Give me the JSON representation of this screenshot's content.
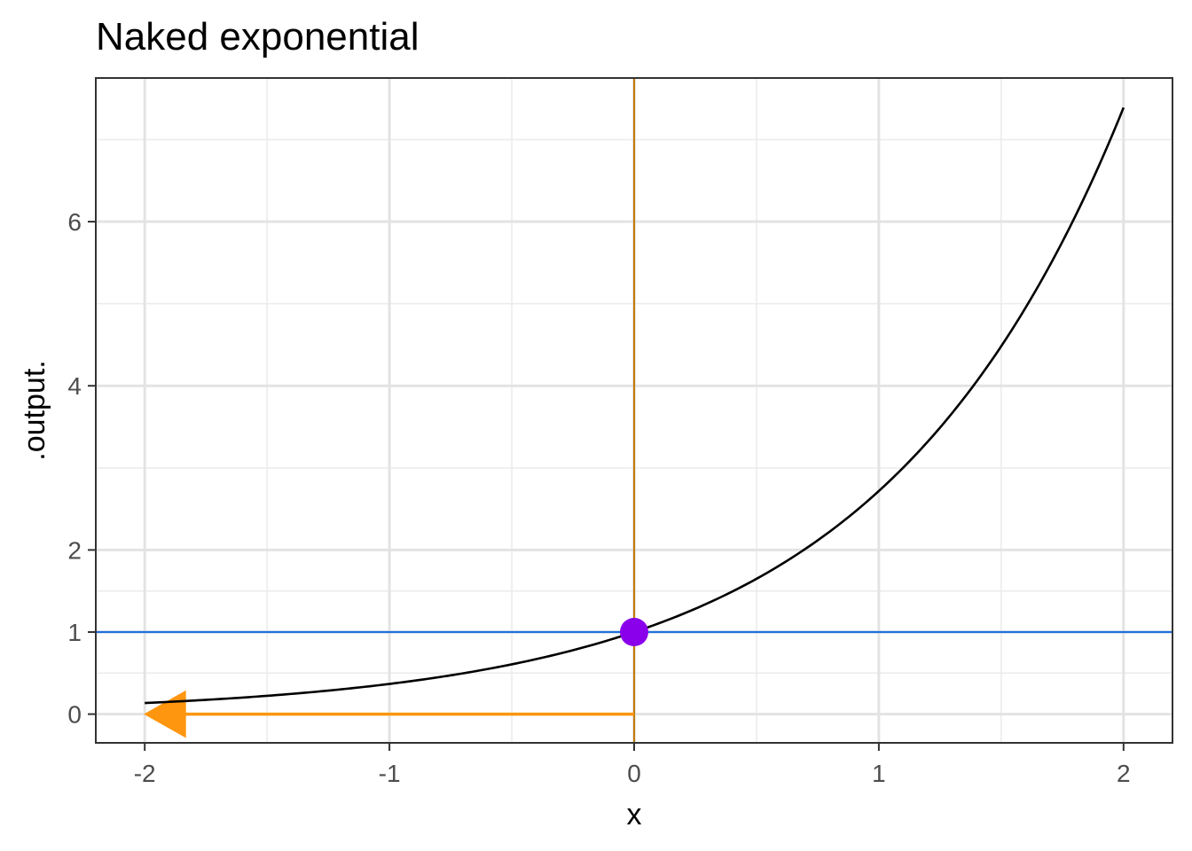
{
  "chart_data": {
    "type": "line",
    "title": "Naked exponential",
    "xlabel": "x",
    "ylabel": ".output.",
    "xlim": [
      -2.2,
      2.2
    ],
    "ylim": [
      -0.35,
      7.75
    ],
    "x_ticks": [
      -2,
      -1,
      0,
      1,
      2
    ],
    "x_tick_labels": [
      "-2",
      "-1",
      "0",
      "1",
      "2"
    ],
    "y_ticks": [
      0,
      1,
      2,
      4,
      6
    ],
    "y_tick_labels": [
      "0",
      "1",
      "2",
      "4",
      "6"
    ],
    "x_minor_grid": [
      -1.5,
      -0.5,
      0.5,
      1.5
    ],
    "y_minor_grid": [
      0.5,
      1.5,
      3,
      5,
      7
    ],
    "grid": true,
    "series": [
      {
        "function": "exp(x)",
        "x": [
          -2,
          -1.75,
          -1.5,
          -1.25,
          -1,
          -0.75,
          -0.5,
          -0.25,
          0,
          0.25,
          0.5,
          0.75,
          1,
          1.25,
          1.5,
          1.75,
          2
        ],
        "y": [
          0.135,
          0.174,
          0.223,
          0.287,
          0.368,
          0.472,
          0.607,
          0.779,
          1,
          1.284,
          1.649,
          2.117,
          2.718,
          3.49,
          4.482,
          5.755,
          7.389
        ],
        "color": "#000000"
      }
    ],
    "annotations": {
      "hline": {
        "y": 1,
        "color": "#1f6fde"
      },
      "vline": {
        "x": 0,
        "color": "#c07a10"
      },
      "point": {
        "x": 0,
        "y": 1,
        "color": "#8a00ea"
      },
      "arrow": {
        "x_from": 0,
        "x_to": -2,
        "y": 0,
        "color": "#ff960f"
      }
    }
  }
}
